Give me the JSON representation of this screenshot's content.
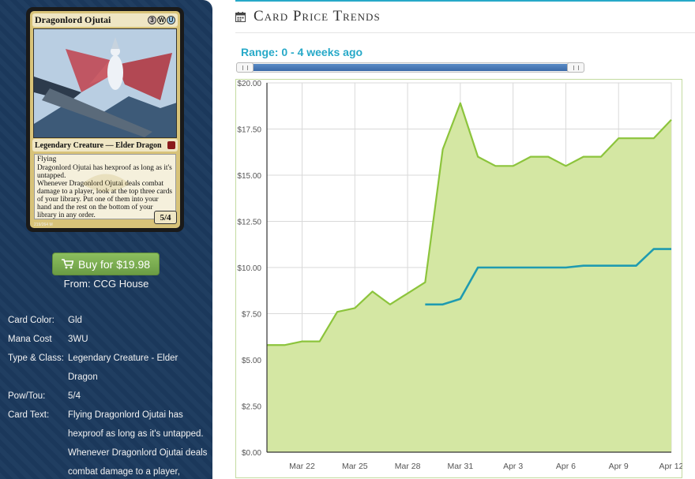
{
  "card": {
    "name": "Dragonlord Ojutai",
    "mana": [
      {
        "symbol": "3",
        "color": "#cbc2be"
      },
      {
        "symbol": "W",
        "color": "#f8f3d6"
      },
      {
        "symbol": "U",
        "color": "#a9d6f2"
      }
    ],
    "type_line": "Legendary Creature — Elder Dragon",
    "text_lines": [
      "Flying",
      "Dragonlord Ojutai has hexproof as long as it's untapped.",
      "Whenever Dragonlord Ojutai deals combat damage to a player, look at the top three cards of your library. Put one of them into your hand and the rest on the bottom of your library in any order."
    ],
    "pt": "5/4",
    "collector": "219/264 M"
  },
  "buy": {
    "label": "Buy for $19.98",
    "from": "From: CCG House"
  },
  "info": [
    {
      "label": "Card Color:",
      "value": "Gld"
    },
    {
      "label": "Mana Cost",
      "value": "3WU"
    },
    {
      "label": "Type & Class:",
      "value": "Legendary Creature - Elder Dragon"
    },
    {
      "label": "Pow/Tou:",
      "value": "5/4"
    },
    {
      "label": "Card Text:",
      "value": "Flying Dragonlord Ojutai has hexproof as long as it's untapped. Whenever Dragonlord Ojutai deals combat damage to a player,"
    }
  ],
  "header": {
    "title": "Card Price Trends",
    "icon": "calendar-icon"
  },
  "range": {
    "label": "Range: 0 - 4 weeks ago",
    "min_weeks": 0,
    "max_weeks": 4
  },
  "colors": {
    "sidebar": "#1c3a5e",
    "accent": "#27a9c8",
    "buy": "#7aad52",
    "series1": "#8cc43c",
    "series1_fill": "#d4e7a3",
    "series2": "#1f9bb0"
  },
  "chart_data": {
    "type": "area",
    "title": "",
    "xlabel": "",
    "ylabel": "",
    "x_ticks": [
      "Mar 22",
      "Mar 25",
      "Mar 28",
      "Mar 31",
      "Apr 3",
      "Apr 6",
      "Apr 9",
      "Apr 12"
    ],
    "y_ticks": [
      "$0.00",
      "$2.50",
      "$5.00",
      "$7.50",
      "$10.00",
      "$12.50",
      "$15.00",
      "$17.50",
      "$20.00"
    ],
    "ylim": [
      0,
      20
    ],
    "xlim": [
      "Mar 20",
      "Apr 12"
    ],
    "grid": true,
    "series": [
      {
        "type": "area",
        "x": [
          "Mar 20",
          "Mar 21",
          "Mar 22",
          "Mar 23",
          "Mar 24",
          "Mar 25",
          "Mar 26",
          "Mar 27",
          "Mar 28",
          "Mar 29",
          "Mar 30",
          "Mar 31",
          "Apr 1",
          "Apr 2",
          "Apr 3",
          "Apr 4",
          "Apr 5",
          "Apr 6",
          "Apr 7",
          "Apr 8",
          "Apr 9",
          "Apr 10",
          "Apr 11",
          "Apr 12"
        ],
        "values": [
          5.8,
          5.8,
          6.0,
          6.0,
          7.6,
          7.8,
          8.7,
          8.0,
          8.6,
          9.2,
          16.4,
          18.9,
          16.0,
          15.5,
          15.5,
          16.0,
          16.0,
          15.5,
          16.0,
          16.0,
          17.0,
          17.0,
          17.0,
          18.0
        ]
      },
      {
        "type": "line",
        "x": [
          "Mar 29",
          "Mar 30",
          "Mar 31",
          "Apr 1",
          "Apr 2",
          "Apr 3",
          "Apr 4",
          "Apr 5",
          "Apr 6",
          "Apr 7",
          "Apr 8",
          "Apr 9",
          "Apr 10",
          "Apr 11",
          "Apr 12"
        ],
        "values": [
          8.0,
          8.0,
          8.3,
          10.0,
          10.0,
          10.0,
          10.0,
          10.0,
          10.0,
          10.1,
          10.1,
          10.1,
          10.1,
          11.0,
          11.0
        ]
      }
    ]
  }
}
